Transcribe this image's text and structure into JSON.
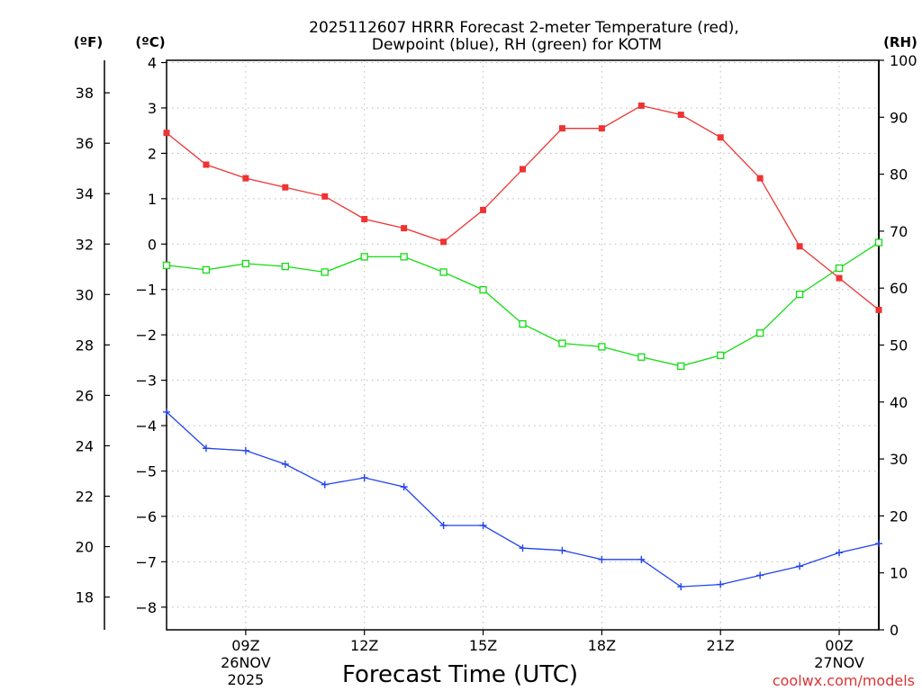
{
  "chart_data": {
    "type": "line",
    "title_line1": "2025112607 HRRR Forecast 2-meter Temperature (red),",
    "title_line2": "Dewpoint (blue), RH (green) for KOTM",
    "xlabel": "Forecast Time (UTC)",
    "watermark": "coolwx.com/models",
    "unit_f": "(ºF)",
    "unit_c": "(ºC)",
    "unit_rh": "(RH)",
    "x_hours": [
      7,
      8,
      9,
      10,
      11,
      12,
      13,
      14,
      15,
      16,
      17,
      18,
      19,
      20,
      21,
      22,
      23,
      24,
      25
    ],
    "xlim": [
      7,
      25
    ],
    "celsius_ylim": [
      -8.5,
      4.05
    ],
    "celsius_ticks": [
      "4",
      "3",
      "2",
      "1",
      "0",
      "−1",
      "−2",
      "−3",
      "−4",
      "−5",
      "−6",
      "−7",
      "−8"
    ],
    "fahrenheit_ticks": [
      "38",
      "36",
      "34",
      "32",
      "30",
      "28",
      "26",
      "24",
      "22",
      "20",
      "18"
    ],
    "rh_ylim": [
      0,
      100
    ],
    "rh_ticks": [
      "100",
      "90",
      "80",
      "70",
      "60",
      "50",
      "40",
      "30",
      "20",
      "10",
      "0"
    ],
    "x_ticks": [
      {
        "hour": 9,
        "label": "09Z",
        "date": "26NOV",
        "year": "2025"
      },
      {
        "hour": 12,
        "label": "12Z",
        "date": "",
        "year": ""
      },
      {
        "hour": 15,
        "label": "15Z",
        "date": "",
        "year": ""
      },
      {
        "hour": 18,
        "label": "18Z",
        "date": "",
        "year": ""
      },
      {
        "hour": 21,
        "label": "21Z",
        "date": "",
        "year": ""
      },
      {
        "hour": 24,
        "label": "00Z",
        "date": "27NOV",
        "year": ""
      }
    ],
    "series": [
      {
        "name": "Temperature",
        "axis": "celsius",
        "color": "#ee3333",
        "marker": "filled-square",
        "values": [
          2.45,
          1.75,
          1.45,
          1.25,
          1.05,
          0.55,
          0.35,
          0.05,
          0.75,
          1.65,
          2.55,
          2.55,
          3.05,
          2.85,
          2.35,
          1.45,
          -0.05,
          -0.75,
          -1.45
        ]
      },
      {
        "name": "Dewpoint",
        "axis": "celsius",
        "color": "#2244ee",
        "marker": "plus",
        "values": [
          -3.7,
          -4.5,
          -4.55,
          -4.85,
          -5.3,
          -5.15,
          -5.35,
          -6.2,
          -6.2,
          -6.7,
          -6.75,
          -6.95,
          -6.95,
          -7.55,
          -7.5,
          -7.3,
          -7.1,
          -6.8,
          -6.6
        ]
      },
      {
        "name": "RH",
        "axis": "rh",
        "color": "#11dd11",
        "marker": "open-square",
        "values": [
          64,
          63.2,
          64.3,
          63.8,
          62.8,
          65.5,
          65.5,
          62.8,
          59.7,
          53.7,
          50.3,
          49.7,
          47.9,
          46.3,
          48.2,
          52.1,
          58.9,
          63.5,
          68
        ]
      }
    ]
  }
}
